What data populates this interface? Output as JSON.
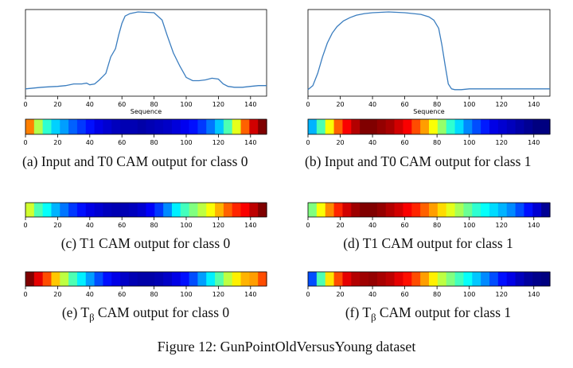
{
  "panels": {
    "a": {
      "label": "(a)",
      "text": "Input and T0 CAM output for class 0"
    },
    "b": {
      "label": "(b)",
      "text": "Input and T0 CAM output for class 1"
    },
    "c": {
      "label": "(c)",
      "text": "T1 CAM output for class 0"
    },
    "d": {
      "label": "(d)",
      "text": "T1 CAM output for class 1"
    },
    "e": {
      "label": "(e)",
      "text_pre": "T",
      "sub": "β",
      "text_post": " CAM output for class 0"
    },
    "f": {
      "label": "(f)",
      "text_pre": "T",
      "sub": "β",
      "text_post": " CAM output for class 1"
    }
  },
  "figure_caption": "Figure 12: GunPointOldVersusYoung dataset",
  "chart_data": [
    {
      "type": "line",
      "panel": "a",
      "xlabel": "Sequence",
      "xlim": [
        0,
        150
      ],
      "xticks": [
        0,
        20,
        40,
        60,
        80,
        100,
        120,
        140
      ],
      "ylim": [
        0,
        1
      ],
      "line_color": "#3a7dbf",
      "x": [
        0,
        5,
        10,
        15,
        20,
        25,
        30,
        35,
        38,
        40,
        43,
        46,
        50,
        53,
        56,
        58,
        60,
        62,
        65,
        70,
        80,
        85,
        88,
        92,
        96,
        100,
        104,
        108,
        112,
        116,
        120,
        123,
        126,
        130,
        135,
        140,
        145,
        150
      ],
      "y": [
        0.06,
        0.07,
        0.08,
        0.085,
        0.09,
        0.1,
        0.12,
        0.12,
        0.13,
        0.11,
        0.12,
        0.17,
        0.25,
        0.45,
        0.55,
        0.72,
        0.86,
        0.95,
        0.98,
        1.0,
        0.99,
        0.9,
        0.72,
        0.5,
        0.34,
        0.2,
        0.16,
        0.16,
        0.17,
        0.19,
        0.18,
        0.12,
        0.09,
        0.08,
        0.08,
        0.09,
        0.1,
        0.1
      ]
    },
    {
      "type": "line",
      "panel": "b",
      "xlabel": "Sequence",
      "xlim": [
        0,
        150
      ],
      "xticks": [
        0,
        20,
        40,
        60,
        80,
        100,
        120,
        140
      ],
      "ylim": [
        0,
        1
      ],
      "line_color": "#3a7dbf",
      "x": [
        0,
        3,
        6,
        9,
        12,
        15,
        18,
        22,
        26,
        30,
        35,
        40,
        50,
        60,
        70,
        75,
        78,
        81,
        83,
        85,
        87,
        89,
        91,
        95,
        100,
        120,
        140,
        150
      ],
      "y": [
        0.05,
        0.1,
        0.25,
        0.45,
        0.62,
        0.74,
        0.82,
        0.89,
        0.93,
        0.96,
        0.98,
        0.99,
        1.0,
        0.99,
        0.97,
        0.94,
        0.9,
        0.8,
        0.6,
        0.35,
        0.12,
        0.06,
        0.05,
        0.05,
        0.06,
        0.06,
        0.06,
        0.06
      ]
    },
    {
      "type": "heatmap",
      "panel": "a",
      "xticks": [
        0,
        20,
        40,
        60,
        80,
        100,
        120,
        140
      ],
      "values": [
        0.75,
        0.55,
        0.42,
        0.33,
        0.28,
        0.22,
        0.18,
        0.14,
        0.1,
        0.08,
        0.06,
        0.05,
        0.05,
        0.04,
        0.05,
        0.06,
        0.07,
        0.09,
        0.11,
        0.14,
        0.18,
        0.24,
        0.32,
        0.45,
        0.6,
        0.78,
        0.92,
        1.0
      ]
    },
    {
      "type": "heatmap",
      "panel": "b",
      "xticks": [
        0,
        20,
        40,
        60,
        80,
        100,
        120,
        140
      ],
      "values": [
        0.3,
        0.45,
        0.62,
        0.78,
        0.88,
        0.95,
        1.0,
        1.0,
        0.98,
        0.96,
        0.92,
        0.88,
        0.8,
        0.72,
        0.62,
        0.52,
        0.42,
        0.34,
        0.26,
        0.2,
        0.15,
        0.1,
        0.08,
        0.06,
        0.04,
        0.02,
        0.0,
        0.0
      ]
    },
    {
      "type": "heatmap",
      "panel": "c",
      "xticks": [
        0,
        20,
        40,
        60,
        80,
        100,
        120,
        140
      ],
      "values": [
        0.58,
        0.45,
        0.38,
        0.3,
        0.24,
        0.18,
        0.14,
        0.1,
        0.08,
        0.06,
        0.05,
        0.05,
        0.06,
        0.08,
        0.12,
        0.18,
        0.26,
        0.36,
        0.44,
        0.5,
        0.56,
        0.62,
        0.7,
        0.78,
        0.84,
        0.88,
        0.94,
        1.0
      ]
    },
    {
      "type": "heatmap",
      "panel": "d",
      "xticks": [
        0,
        20,
        40,
        60,
        80,
        100,
        120,
        140
      ],
      "values": [
        0.5,
        0.62,
        0.74,
        0.84,
        0.92,
        0.97,
        1.0,
        1.0,
        0.98,
        0.95,
        0.92,
        0.88,
        0.84,
        0.78,
        0.72,
        0.66,
        0.6,
        0.54,
        0.48,
        0.42,
        0.38,
        0.34,
        0.3,
        0.26,
        0.2,
        0.14,
        0.08,
        0.02
      ]
    },
    {
      "type": "heatmap",
      "panel": "e",
      "xticks": [
        0,
        20,
        40,
        60,
        80,
        100,
        120,
        140
      ],
      "values": [
        1.0,
        0.9,
        0.8,
        0.68,
        0.56,
        0.45,
        0.36,
        0.28,
        0.2,
        0.14,
        0.1,
        0.07,
        0.05,
        0.04,
        0.04,
        0.05,
        0.07,
        0.1,
        0.14,
        0.2,
        0.28,
        0.36,
        0.46,
        0.56,
        0.64,
        0.7,
        0.72,
        0.8
      ]
    },
    {
      "type": "heatmap",
      "panel": "f",
      "xticks": [
        0,
        20,
        40,
        60,
        80,
        100,
        120,
        140
      ],
      "values": [
        0.2,
        0.45,
        0.65,
        0.8,
        0.9,
        0.95,
        0.97,
        0.98,
        0.96,
        0.94,
        0.9,
        0.86,
        0.8,
        0.72,
        0.64,
        0.56,
        0.5,
        0.44,
        0.38,
        0.32,
        0.26,
        0.2,
        0.14,
        0.1,
        0.06,
        0.03,
        0.01,
        0.0
      ]
    }
  ]
}
